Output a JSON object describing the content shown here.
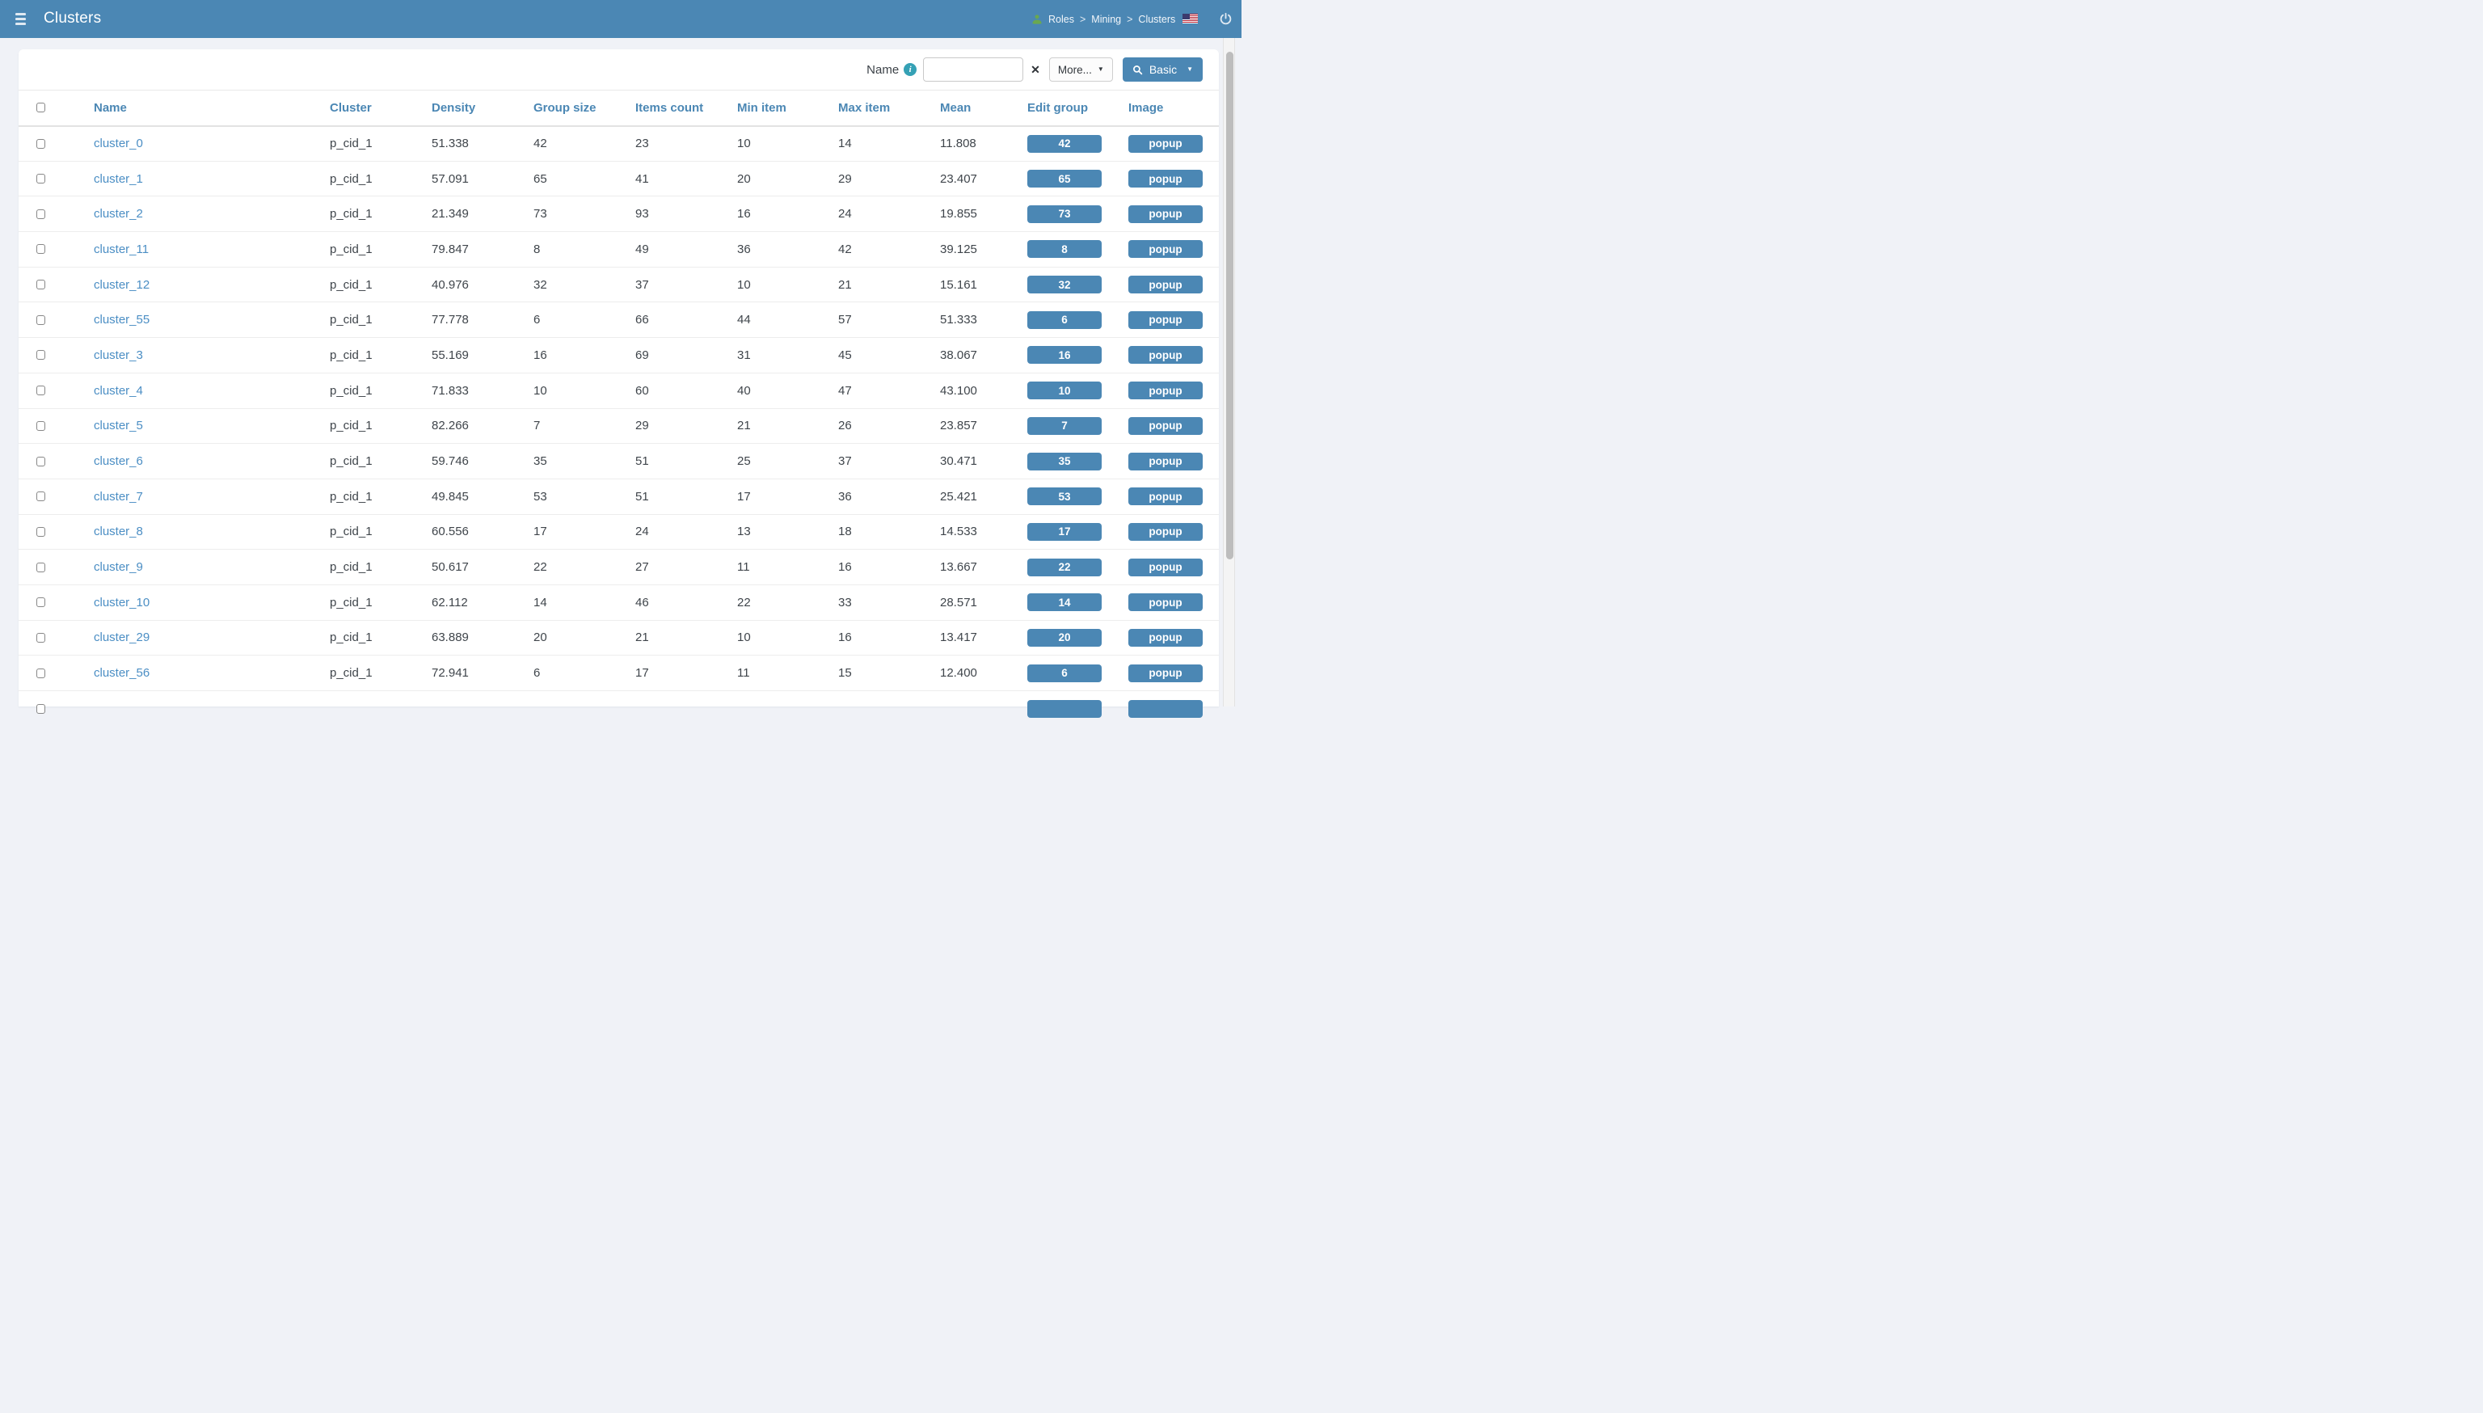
{
  "header": {
    "title": "Clusters",
    "breadcrumb": [
      "Roles",
      "Mining",
      "Clusters"
    ],
    "breadcrumb_separator": ">"
  },
  "filter": {
    "field_label": "Name",
    "input_value": "",
    "clear_label": "✕",
    "more_label": "More...",
    "search_label": "Basic",
    "caret": "▼"
  },
  "table": {
    "columns": [
      "Name",
      "Cluster",
      "Density",
      "Group size",
      "Items count",
      "Min item",
      "Max item",
      "Mean",
      "Edit group",
      "Image"
    ],
    "popup_label": "popup",
    "rows": [
      {
        "name": "cluster_0",
        "cluster": "p_cid_1",
        "density": "51.338",
        "group_size": "42",
        "items_count": "23",
        "min_item": "10",
        "max_item": "14",
        "mean": "11.808",
        "edit_group": "42"
      },
      {
        "name": "cluster_1",
        "cluster": "p_cid_1",
        "density": "57.091",
        "group_size": "65",
        "items_count": "41",
        "min_item": "20",
        "max_item": "29",
        "mean": "23.407",
        "edit_group": "65"
      },
      {
        "name": "cluster_2",
        "cluster": "p_cid_1",
        "density": "21.349",
        "group_size": "73",
        "items_count": "93",
        "min_item": "16",
        "max_item": "24",
        "mean": "19.855",
        "edit_group": "73"
      },
      {
        "name": "cluster_11",
        "cluster": "p_cid_1",
        "density": "79.847",
        "group_size": "8",
        "items_count": "49",
        "min_item": "36",
        "max_item": "42",
        "mean": "39.125",
        "edit_group": "8"
      },
      {
        "name": "cluster_12",
        "cluster": "p_cid_1",
        "density": "40.976",
        "group_size": "32",
        "items_count": "37",
        "min_item": "10",
        "max_item": "21",
        "mean": "15.161",
        "edit_group": "32"
      },
      {
        "name": "cluster_55",
        "cluster": "p_cid_1",
        "density": "77.778",
        "group_size": "6",
        "items_count": "66",
        "min_item": "44",
        "max_item": "57",
        "mean": "51.333",
        "edit_group": "6"
      },
      {
        "name": "cluster_3",
        "cluster": "p_cid_1",
        "density": "55.169",
        "group_size": "16",
        "items_count": "69",
        "min_item": "31",
        "max_item": "45",
        "mean": "38.067",
        "edit_group": "16"
      },
      {
        "name": "cluster_4",
        "cluster": "p_cid_1",
        "density": "71.833",
        "group_size": "10",
        "items_count": "60",
        "min_item": "40",
        "max_item": "47",
        "mean": "43.100",
        "edit_group": "10"
      },
      {
        "name": "cluster_5",
        "cluster": "p_cid_1",
        "density": "82.266",
        "group_size": "7",
        "items_count": "29",
        "min_item": "21",
        "max_item": "26",
        "mean": "23.857",
        "edit_group": "7"
      },
      {
        "name": "cluster_6",
        "cluster": "p_cid_1",
        "density": "59.746",
        "group_size": "35",
        "items_count": "51",
        "min_item": "25",
        "max_item": "37",
        "mean": "30.471",
        "edit_group": "35"
      },
      {
        "name": "cluster_7",
        "cluster": "p_cid_1",
        "density": "49.845",
        "group_size": "53",
        "items_count": "51",
        "min_item": "17",
        "max_item": "36",
        "mean": "25.421",
        "edit_group": "53"
      },
      {
        "name": "cluster_8",
        "cluster": "p_cid_1",
        "density": "60.556",
        "group_size": "17",
        "items_count": "24",
        "min_item": "13",
        "max_item": "18",
        "mean": "14.533",
        "edit_group": "17"
      },
      {
        "name": "cluster_9",
        "cluster": "p_cid_1",
        "density": "50.617",
        "group_size": "22",
        "items_count": "27",
        "min_item": "11",
        "max_item": "16",
        "mean": "13.667",
        "edit_group": "22"
      },
      {
        "name": "cluster_10",
        "cluster": "p_cid_1",
        "density": "62.112",
        "group_size": "14",
        "items_count": "46",
        "min_item": "22",
        "max_item": "33",
        "mean": "28.571",
        "edit_group": "14"
      },
      {
        "name": "cluster_29",
        "cluster": "p_cid_1",
        "density": "63.889",
        "group_size": "20",
        "items_count": "21",
        "min_item": "10",
        "max_item": "16",
        "mean": "13.417",
        "edit_group": "20"
      },
      {
        "name": "cluster_56",
        "cluster": "p_cid_1",
        "density": "72.941",
        "group_size": "6",
        "items_count": "17",
        "min_item": "11",
        "max_item": "15",
        "mean": "12.400",
        "edit_group": "6"
      }
    ],
    "partial_row": {
      "name": "",
      "cluster": "",
      "density": "",
      "group_size": "",
      "items_count": "",
      "min_item": "",
      "max_item": "",
      "mean": "",
      "edit_group": ""
    }
  },
  "colors": {
    "header_bar": "#4b87b4",
    "primary_button": "#4b87b4",
    "table_header_text": "#4b87b4",
    "link": "#4b8ec4",
    "info_icon": "#35a1b5",
    "user_icon_green": "#6aa84f",
    "page_background": "#f0f2f7",
    "scroll_thumb": "#bdbdbd"
  }
}
